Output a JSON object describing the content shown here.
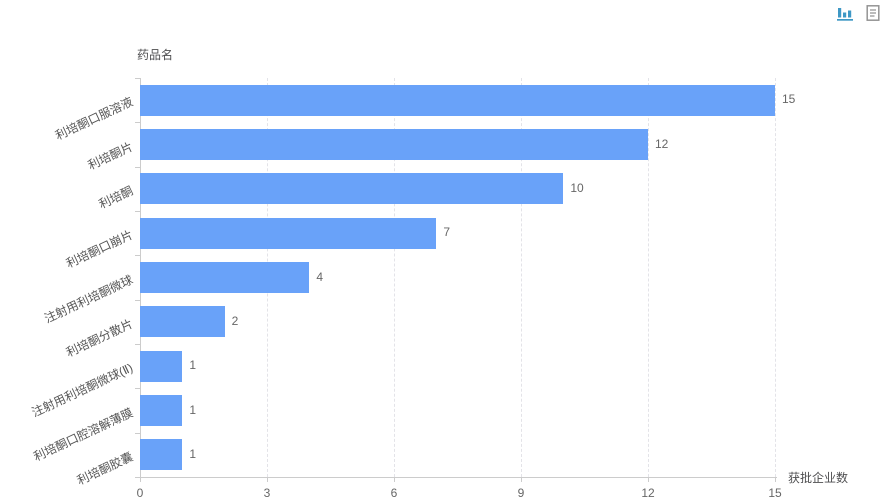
{
  "colors": {
    "bar": "#69a2f9",
    "toolbox_active": "#3e98c5",
    "toolbox_inactive": "#949494",
    "grid_line": "#e3e3e8",
    "axis_line": "#cccccc"
  },
  "toolbox": {
    "items": [
      {
        "name": "bar-chart-icon",
        "tool": "magic-type-bar"
      },
      {
        "name": "data-view-icon",
        "tool": "data-view"
      }
    ]
  },
  "chart_data": {
    "type": "bar",
    "orientation": "horizontal",
    "categories": [
      "利培酮口服溶液",
      "利培酮片",
      "利培酮",
      "利培酮口崩片",
      "注射用利培酮微球",
      "利培酮分散片",
      "注射用利培酮微球(Ⅱ)",
      "利培酮口腔溶解薄膜",
      "利培酮胶囊"
    ],
    "values": [
      15,
      12,
      10,
      7,
      4,
      2,
      1,
      1,
      1
    ],
    "category_axis_label": "药品名",
    "value_axis_label": "获批企业数",
    "x_ticks": [
      0,
      3,
      6,
      9,
      12,
      15
    ],
    "xlim": [
      0,
      15
    ],
    "bar_color": "#69a2f9",
    "grid": "dashed-vertical",
    "value_labels_shown": true,
    "legend": "none"
  }
}
